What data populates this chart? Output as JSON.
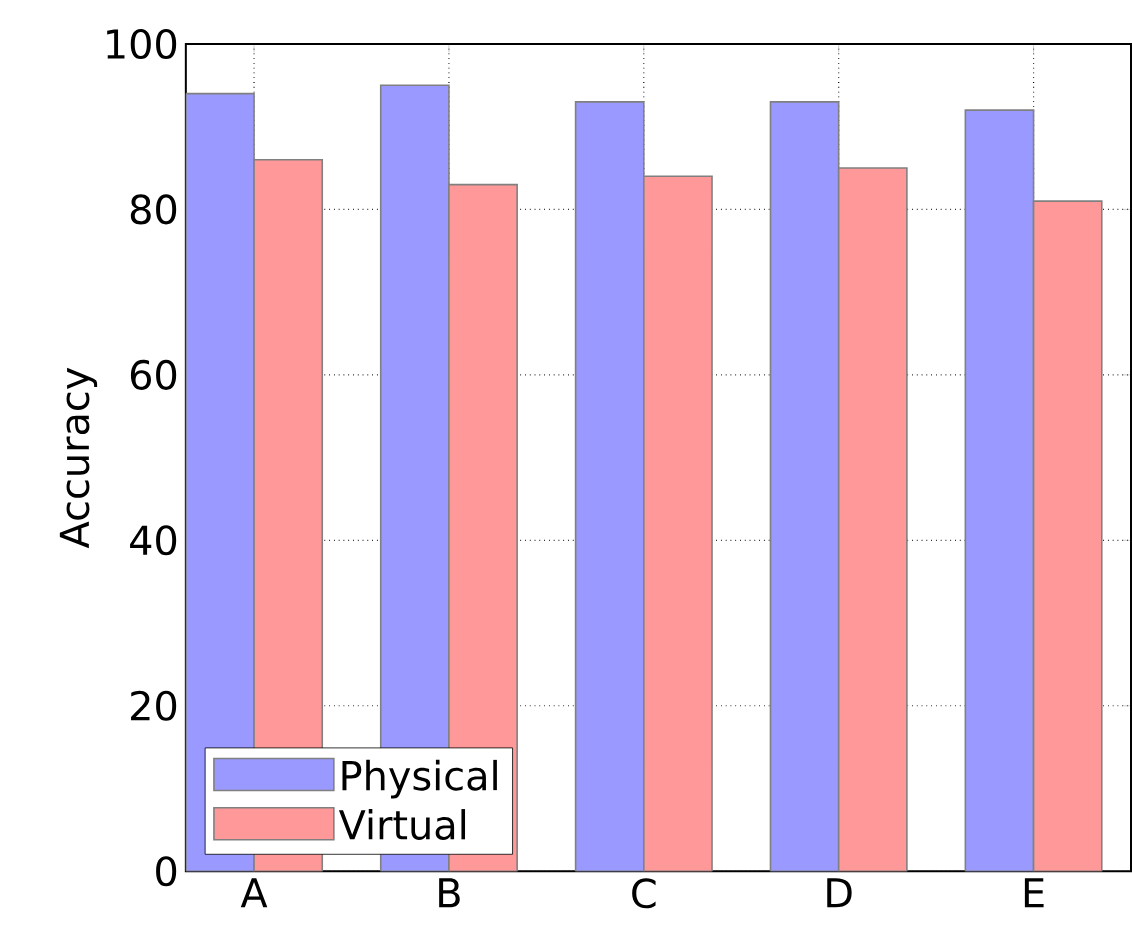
{
  "chart_data": {
    "type": "bar",
    "ylabel": "Accuracy",
    "categories": [
      "A",
      "B",
      "C",
      "D",
      "E"
    ],
    "series": [
      {
        "name": "Physical",
        "color": "#9999ff",
        "values": [
          94,
          95,
          93,
          93,
          92
        ]
      },
      {
        "name": "Virtual",
        "color": "#ff9999",
        "values": [
          86,
          83,
          84,
          85,
          81
        ]
      }
    ],
    "ylim": [
      0,
      100
    ],
    "yticks": [
      0,
      20,
      40,
      60,
      80,
      100
    ],
    "grid": true,
    "legend": "bottom left"
  }
}
